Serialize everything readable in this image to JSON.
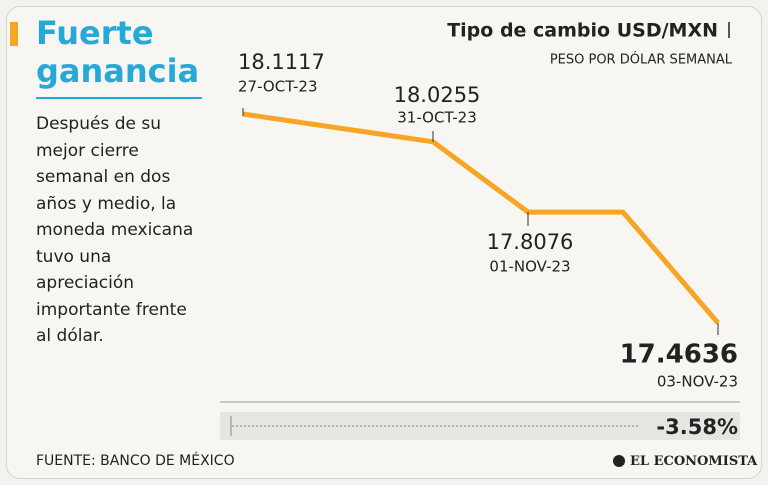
{
  "headline": "Fuerte ganancia",
  "body": "Después de su mejor cierre semanal en dos años y medio, la moneda mexicana tuvo una apreciación importante frente al dólar.",
  "source": "FUENTE: BANCO DE MÉXICO",
  "brand": "EL ECONOMISTA",
  "chart_data": {
    "type": "line",
    "title": "Tipo de cambio USD/MXN",
    "subtitle": "PESO POR DÓLAR SEMANAL",
    "categories": [
      "27-OCT-23",
      "31-OCT-23",
      "01-NOV-23",
      null,
      "03-NOV-23"
    ],
    "values": [
      18.1117,
      18.0255,
      17.8076,
      17.8076,
      17.4636
    ],
    "color": "#f6a524",
    "change": "-3.58%"
  }
}
